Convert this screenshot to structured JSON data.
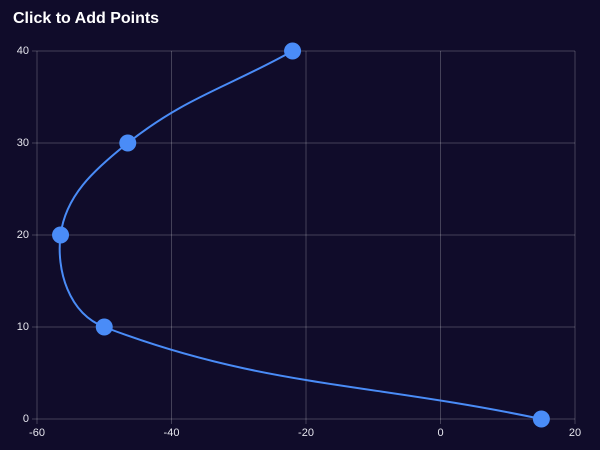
{
  "chart_data": {
    "type": "line",
    "title": "Click to Add Points",
    "x": [
      -22,
      -46.5,
      -56.5,
      -50,
      15
    ],
    "values": [
      40,
      30,
      20,
      10,
      0
    ],
    "color": "#4a8cf7",
    "xlim": [
      -60,
      20
    ],
    "xticks": [
      -60,
      -40,
      -20,
      0,
      20
    ],
    "ylim": [
      0,
      40
    ],
    "yticks": [
      0,
      10,
      20,
      30,
      40
    ],
    "grid": true
  }
}
